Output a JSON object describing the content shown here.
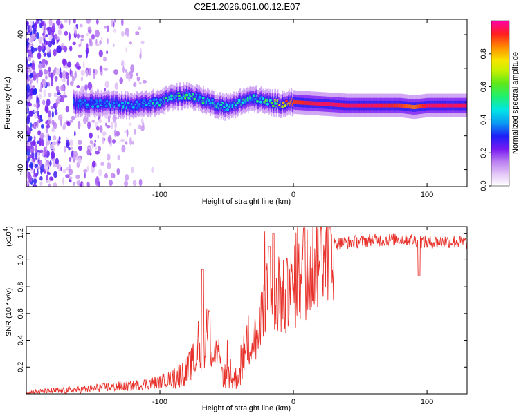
{
  "title": "C2E1.2026.061.00.12.E07",
  "chart_data": [
    {
      "type": "heatmap",
      "xlabel": "Height of straight line (km)",
      "ylabel": "Frequency (Hz)",
      "xlim": [
        -200,
        130
      ],
      "ylim": [
        -50,
        49
      ],
      "x_ticks": [
        -100,
        0,
        100
      ],
      "x_tick_labels": [
        "-100",
        "0",
        "100"
      ],
      "y_ticks": [
        -40,
        -20,
        0,
        20,
        40
      ],
      "y_tick_labels": [
        "-40",
        "-20",
        "0",
        "20",
        "40"
      ],
      "colorbar": {
        "label": "Normalized spectral amplitude",
        "range": [
          0,
          1
        ],
        "ticks": [
          0.0,
          0.2,
          0.4,
          0.6,
          0.8
        ],
        "tick_labels": [
          "0.0",
          "0.2",
          "0.4",
          "0.6",
          "0.8"
        ],
        "colormap": "rainbow"
      },
      "ridge": {
        "x": [
          -160,
          -140,
          -120,
          -100,
          -90,
          -80,
          -70,
          -60,
          -50,
          -40,
          -30,
          -20,
          -10,
          0,
          20,
          40,
          60,
          80,
          90,
          100,
          130
        ],
        "freq": [
          -1,
          -1,
          -2,
          0,
          3,
          4,
          2,
          -1,
          -3,
          0,
          2,
          0,
          -1,
          0,
          -1,
          -2,
          -2,
          -2,
          -3,
          -2,
          -2
        ],
        "amplitude": [
          0.35,
          0.4,
          0.4,
          0.45,
          0.5,
          0.5,
          0.5,
          0.45,
          0.45,
          0.5,
          0.45,
          0.55,
          0.7,
          0.9,
          0.95,
          0.95,
          0.95,
          0.9,
          0.85,
          0.95,
          0.95
        ]
      }
    },
    {
      "type": "line",
      "xlabel": "Height of straight line (km)",
      "ylabel": "SNR (10 * v/v)",
      "y_scale_label": "(x10",
      "y_scale_exponent": "4",
      "xlim": [
        -200,
        130
      ],
      "ylim": [
        0,
        1.25
      ],
      "x_ticks": [
        -100,
        0,
        100
      ],
      "x_tick_labels": [
        "-100",
        "0",
        "100"
      ],
      "y_ticks": [
        0.2,
        0.4,
        0.6,
        0.8,
        1.0,
        1.2
      ],
      "y_tick_labels": [
        "0.2",
        "0.4",
        "0.6",
        "0.8",
        "1.0",
        "1.2"
      ],
      "color": "#e8312a",
      "series": [
        {
          "name": "SNR",
          "x": [
            -200,
            -180,
            -160,
            -140,
            -120,
            -100,
            -90,
            -80,
            -75,
            -70,
            -65,
            -62,
            -58,
            -55,
            -50,
            -45,
            -40,
            -35,
            -30,
            -25,
            -22,
            -20,
            -18,
            -15,
            -10,
            -5,
            0,
            5,
            10,
            15,
            20,
            25,
            30,
            40,
            50,
            60,
            70,
            80,
            90,
            95,
            100,
            110,
            120,
            130
          ],
          "values": [
            0.01,
            0.02,
            0.03,
            0.05,
            0.06,
            0.09,
            0.12,
            0.17,
            0.25,
            0.3,
            0.4,
            0.35,
            0.3,
            0.18,
            0.12,
            0.1,
            0.15,
            0.35,
            0.4,
            0.45,
            0.75,
            0.8,
            0.55,
            0.6,
            0.7,
            0.72,
            0.78,
            0.85,
            0.9,
            0.98,
            1.05,
            1.1,
            1.12,
            1.13,
            1.14,
            1.15,
            1.15,
            1.16,
            1.15,
            1.14,
            1.13,
            1.14,
            1.14,
            1.13
          ],
          "spikes": [
            {
              "x": -68,
              "value": 0.93
            },
            {
              "x": -63,
              "value": 0.62
            },
            {
              "x": -18,
              "value": 1.1
            },
            {
              "x": -15,
              "value": 1.2
            },
            {
              "x": 8,
              "value": 1.24
            },
            {
              "x": 94,
              "value": 0.88
            }
          ]
        }
      ]
    }
  ]
}
